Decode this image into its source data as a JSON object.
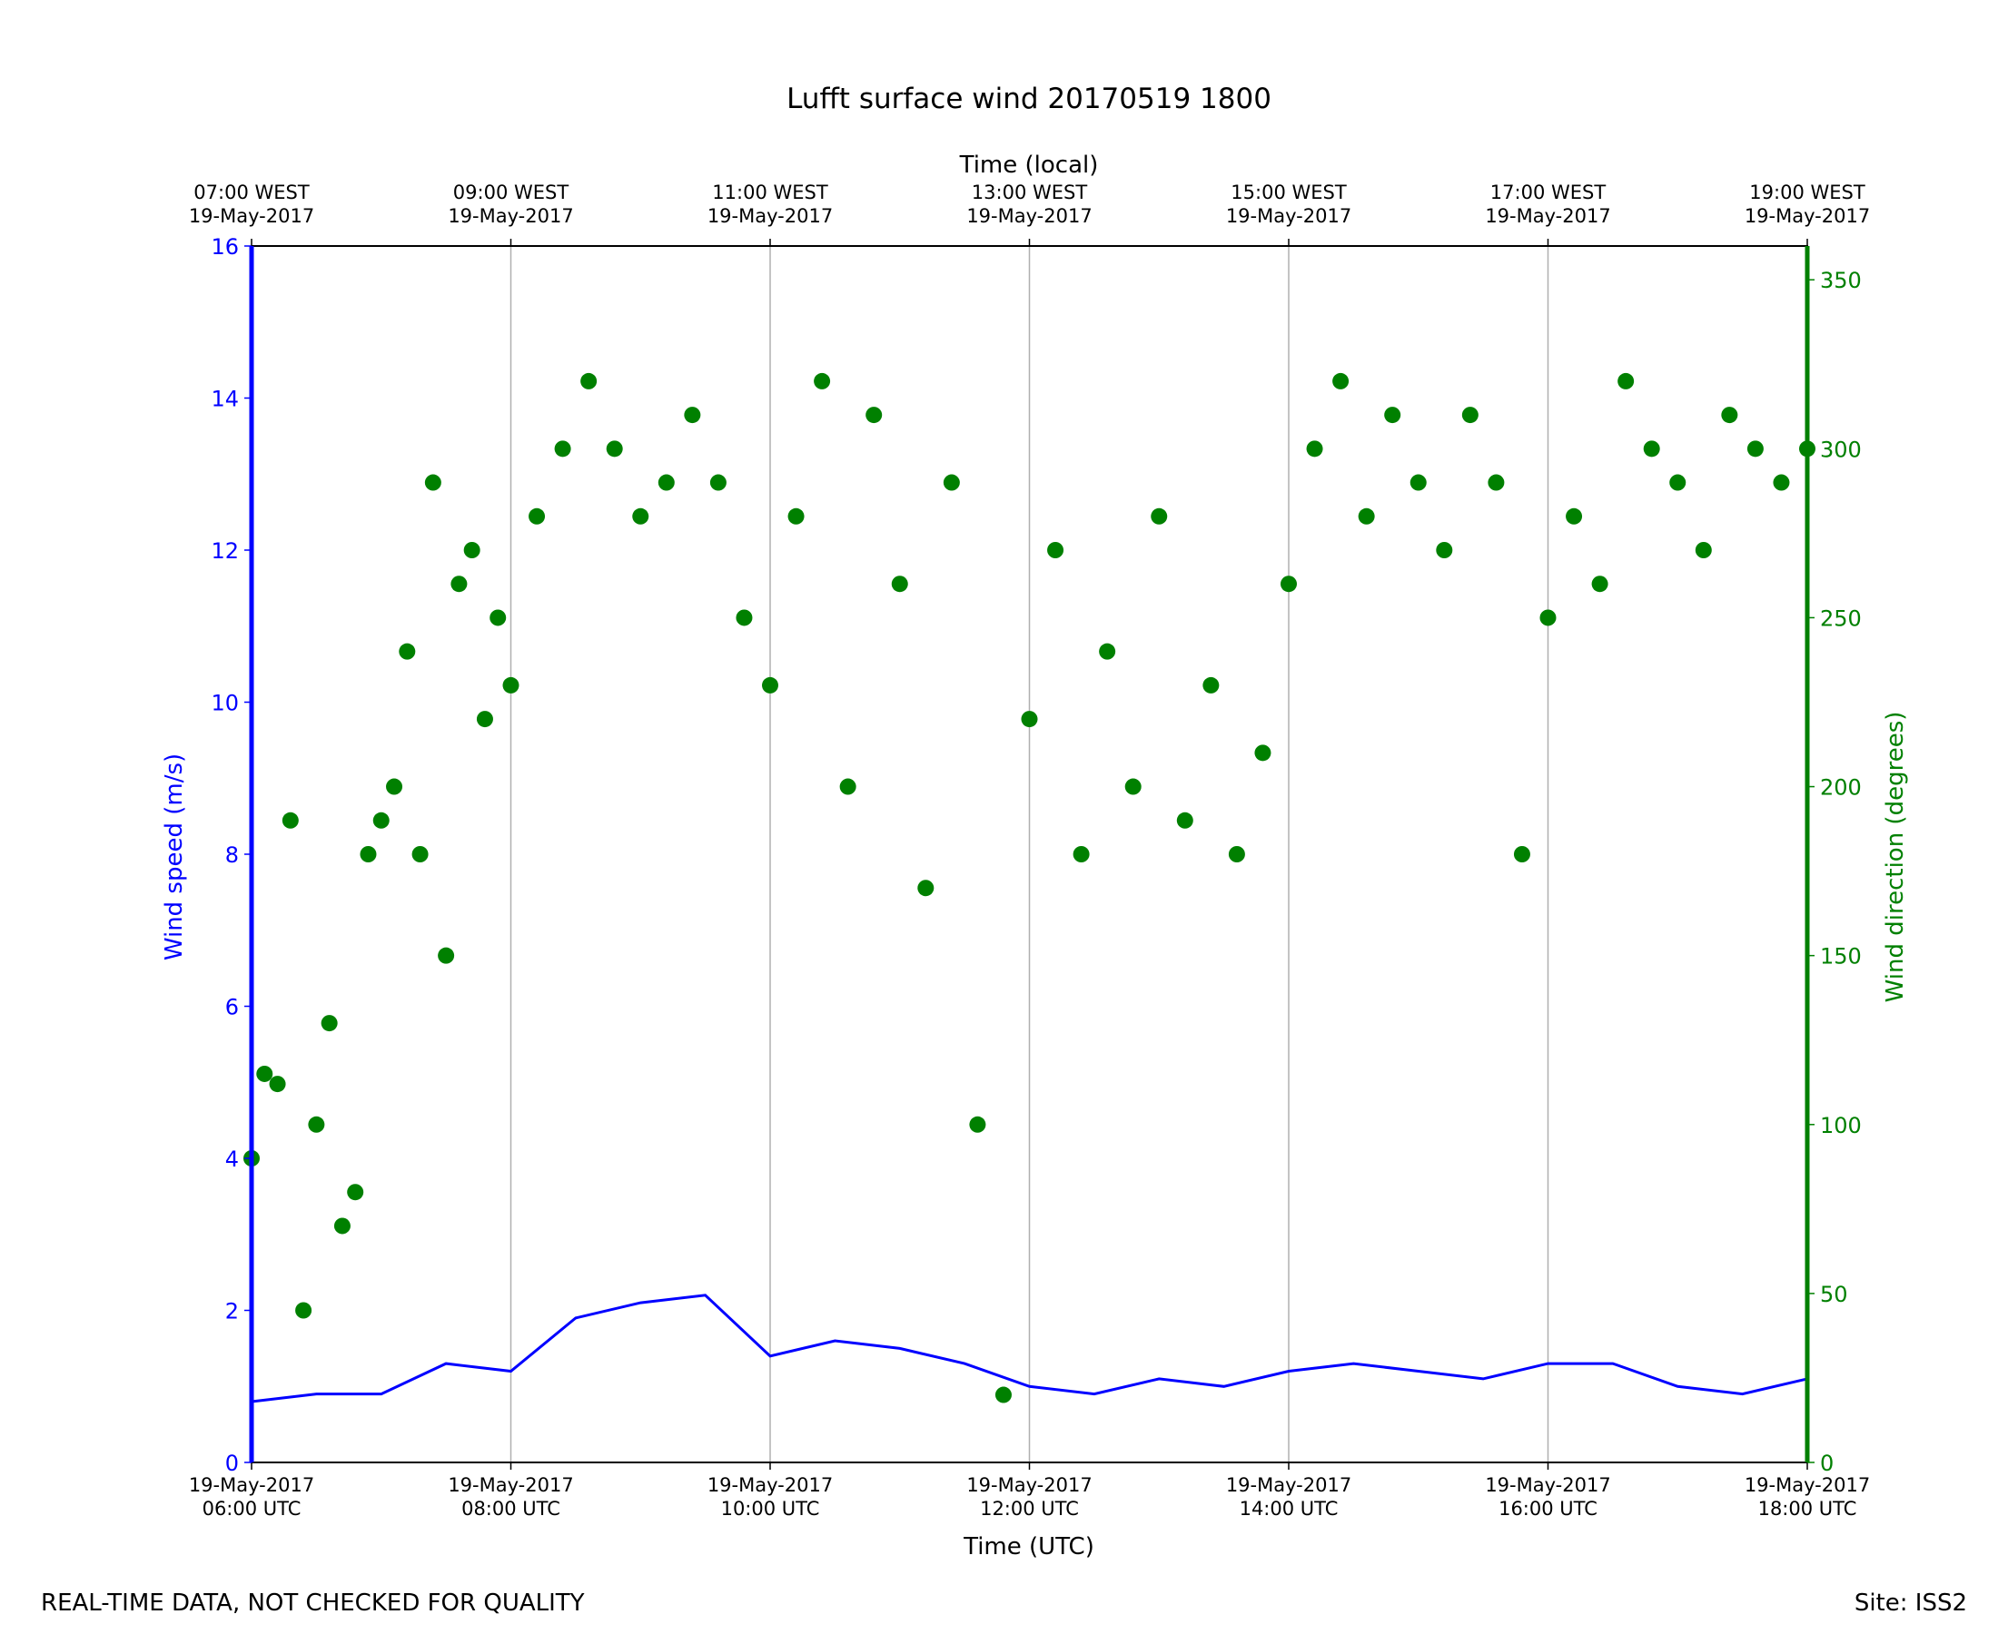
{
  "chart_data": {
    "type": "line+scatter",
    "title": "Lufft surface wind 20170519 1800",
    "xlabel": "Time (UTC)",
    "top_xlabel": "Time (local)",
    "ylabel_left": "Wind speed (m/s)",
    "ylabel_right": "Wind direction (degrees)",
    "footer_left": "REAL-TIME DATA, NOT CHECKED FOR QUALITY",
    "footer_right": "Site: ISS2",
    "xlim_hours_utc": [
      6,
      18
    ],
    "ylim_speed": [
      0,
      16
    ],
    "ylim_direction": [
      0,
      360
    ],
    "speed_ticks": [
      "0",
      "2",
      "4",
      "6",
      "8",
      "10",
      "12",
      "14",
      "16"
    ],
    "direction_ticks": [
      "0",
      "50",
      "100",
      "150",
      "200",
      "250",
      "300",
      "350"
    ],
    "bottom_ticks": [
      {
        "date": "19-May-2017",
        "time": "06:00 UTC"
      },
      {
        "date": "19-May-2017",
        "time": "08:00 UTC"
      },
      {
        "date": "19-May-2017",
        "time": "10:00 UTC"
      },
      {
        "date": "19-May-2017",
        "time": "12:00 UTC"
      },
      {
        "date": "19-May-2017",
        "time": "14:00 UTC"
      },
      {
        "date": "19-May-2017",
        "time": "16:00 UTC"
      },
      {
        "date": "19-May-2017",
        "time": "18:00 UTC"
      }
    ],
    "top_ticks": [
      {
        "time": "07:00 WEST",
        "date": "19-May-2017"
      },
      {
        "time": "09:00 WEST",
        "date": "19-May-2017"
      },
      {
        "time": "11:00 WEST",
        "date": "19-May-2017"
      },
      {
        "time": "13:00 WEST",
        "date": "19-May-2017"
      },
      {
        "time": "15:00 WEST",
        "date": "19-May-2017"
      },
      {
        "time": "17:00 WEST",
        "date": "19-May-2017"
      },
      {
        "time": "19:00 WEST",
        "date": "19-May-2017"
      }
    ],
    "series": [
      {
        "name": "Wind speed",
        "axis": "left",
        "color": "#0000ff",
        "style": "line",
        "x_hours_utc": [
          6.0,
          6.5,
          7.0,
          7.5,
          8.0,
          8.5,
          9.0,
          9.5,
          10.0,
          10.5,
          11.0,
          11.5,
          12.0,
          12.5,
          13.0,
          13.5,
          14.0,
          14.5,
          15.0,
          15.5,
          16.0,
          16.5,
          17.0,
          17.5,
          18.0
        ],
        "y": [
          0.8,
          0.9,
          0.9,
          1.3,
          1.2,
          1.9,
          2.1,
          2.2,
          1.4,
          1.6,
          1.5,
          1.3,
          1.0,
          0.9,
          1.1,
          1.0,
          1.2,
          1.3,
          1.2,
          1.1,
          1.3,
          1.3,
          1.0,
          0.9,
          1.1
        ]
      },
      {
        "name": "Wind direction",
        "axis": "right",
        "color": "#008000",
        "style": "scatter",
        "x_hours_utc": [
          6.0,
          6.1,
          6.2,
          6.3,
          6.4,
          6.5,
          6.6,
          6.7,
          6.8,
          6.9,
          7.0,
          7.1,
          7.2,
          7.3,
          7.4,
          7.5,
          7.6,
          7.7,
          7.8,
          7.9,
          8.0,
          8.2,
          8.4,
          8.6,
          8.8,
          9.0,
          9.2,
          9.4,
          9.6,
          9.8,
          10.0,
          10.2,
          10.4,
          10.6,
          10.8,
          11.0,
          11.2,
          11.4,
          11.6,
          11.8,
          12.0,
          12.2,
          12.4,
          12.6,
          12.8,
          13.0,
          13.2,
          13.4,
          13.6,
          13.8,
          14.0,
          14.2,
          14.4,
          14.6,
          14.8,
          15.0,
          15.2,
          15.4,
          15.6,
          15.8,
          16.0,
          16.2,
          16.4,
          16.6,
          16.8,
          17.0,
          17.2,
          17.4,
          17.6,
          17.8,
          18.0
        ],
        "y": [
          90,
          115,
          112,
          190,
          45,
          100,
          130,
          70,
          80,
          180,
          190,
          200,
          240,
          180,
          290,
          150,
          260,
          270,
          220,
          250,
          230,
          280,
          300,
          320,
          300,
          280,
          290,
          310,
          290,
          250,
          230,
          280,
          320,
          200,
          310,
          260,
          170,
          290,
          100,
          20,
          220,
          270,
          180,
          240,
          200,
          280,
          190,
          230,
          180,
          210,
          260,
          300,
          320,
          280,
          310,
          290,
          270,
          310,
          290,
          180,
          250,
          280,
          260,
          320,
          300,
          290,
          270,
          310,
          300,
          290,
          300
        ]
      }
    ]
  }
}
